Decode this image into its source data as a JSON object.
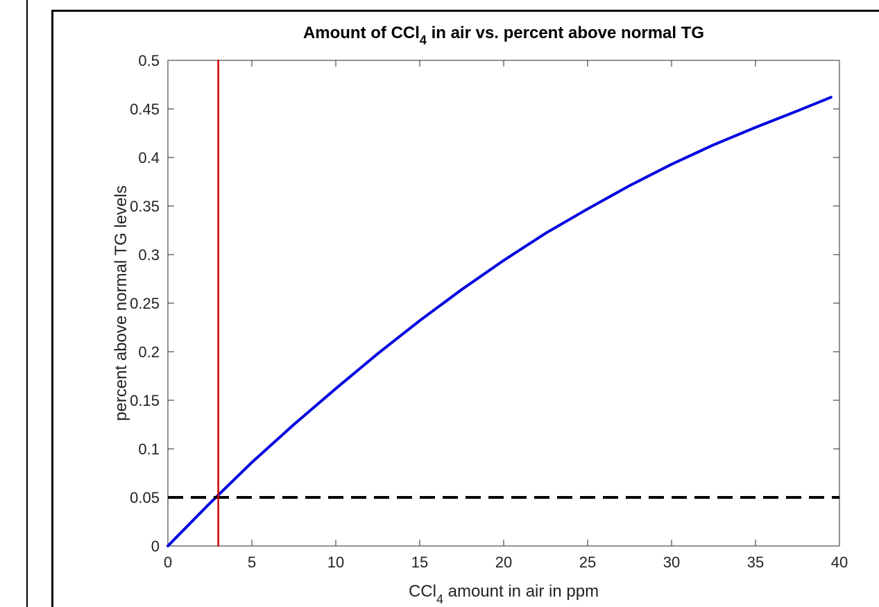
{
  "chart_data": {
    "type": "line",
    "title": "Amount of CCl",
    "title_sub": "4",
    "title_rest": " in air vs. percent above normal TG",
    "xlabel": "CCl",
    "xlabel_sub": "4",
    "xlabel_rest": " amount in air in ppm",
    "ylabel": "percent above normal TG levels",
    "xlim": [
      0,
      40
    ],
    "ylim": [
      0,
      0.5
    ],
    "xticks": [
      0,
      5,
      10,
      15,
      20,
      25,
      30,
      35,
      40
    ],
    "xtick_labels": [
      "0",
      "5",
      "10",
      "15",
      "20",
      "25",
      "30",
      "35",
      "40"
    ],
    "yticks": [
      0,
      0.05,
      0.1,
      0.15,
      0.2,
      0.25,
      0.3,
      0.35,
      0.4,
      0.45,
      0.5
    ],
    "ytick_labels": [
      "0",
      "0.05",
      "0.1",
      "0.15",
      "0.2",
      "0.25",
      "0.3",
      "0.35",
      "0.4",
      "0.45",
      "0.5"
    ],
    "grid": false,
    "series": [
      {
        "style": "solid",
        "color": "#0000e0",
        "x": [
          0,
          2.5,
          5,
          7.5,
          10,
          12.5,
          15,
          17.5,
          20,
          22.5,
          25,
          27.5,
          30,
          32.5,
          35,
          37.5,
          39.5
        ],
        "y": [
          0,
          0.044,
          0.086,
          0.125,
          0.162,
          0.198,
          0.232,
          0.264,
          0.294,
          0.322,
          0.347,
          0.371,
          0.393,
          0.413,
          0.431,
          0.448,
          0.462
        ]
      },
      {
        "style": "dashed",
        "color": "#000000",
        "x": [
          0,
          40
        ],
        "y": [
          0.05,
          0.05
        ]
      },
      {
        "style": "solid",
        "color": "#d00000",
        "x": [
          3,
          3
        ],
        "y": [
          0,
          0.5
        ]
      }
    ]
  }
}
